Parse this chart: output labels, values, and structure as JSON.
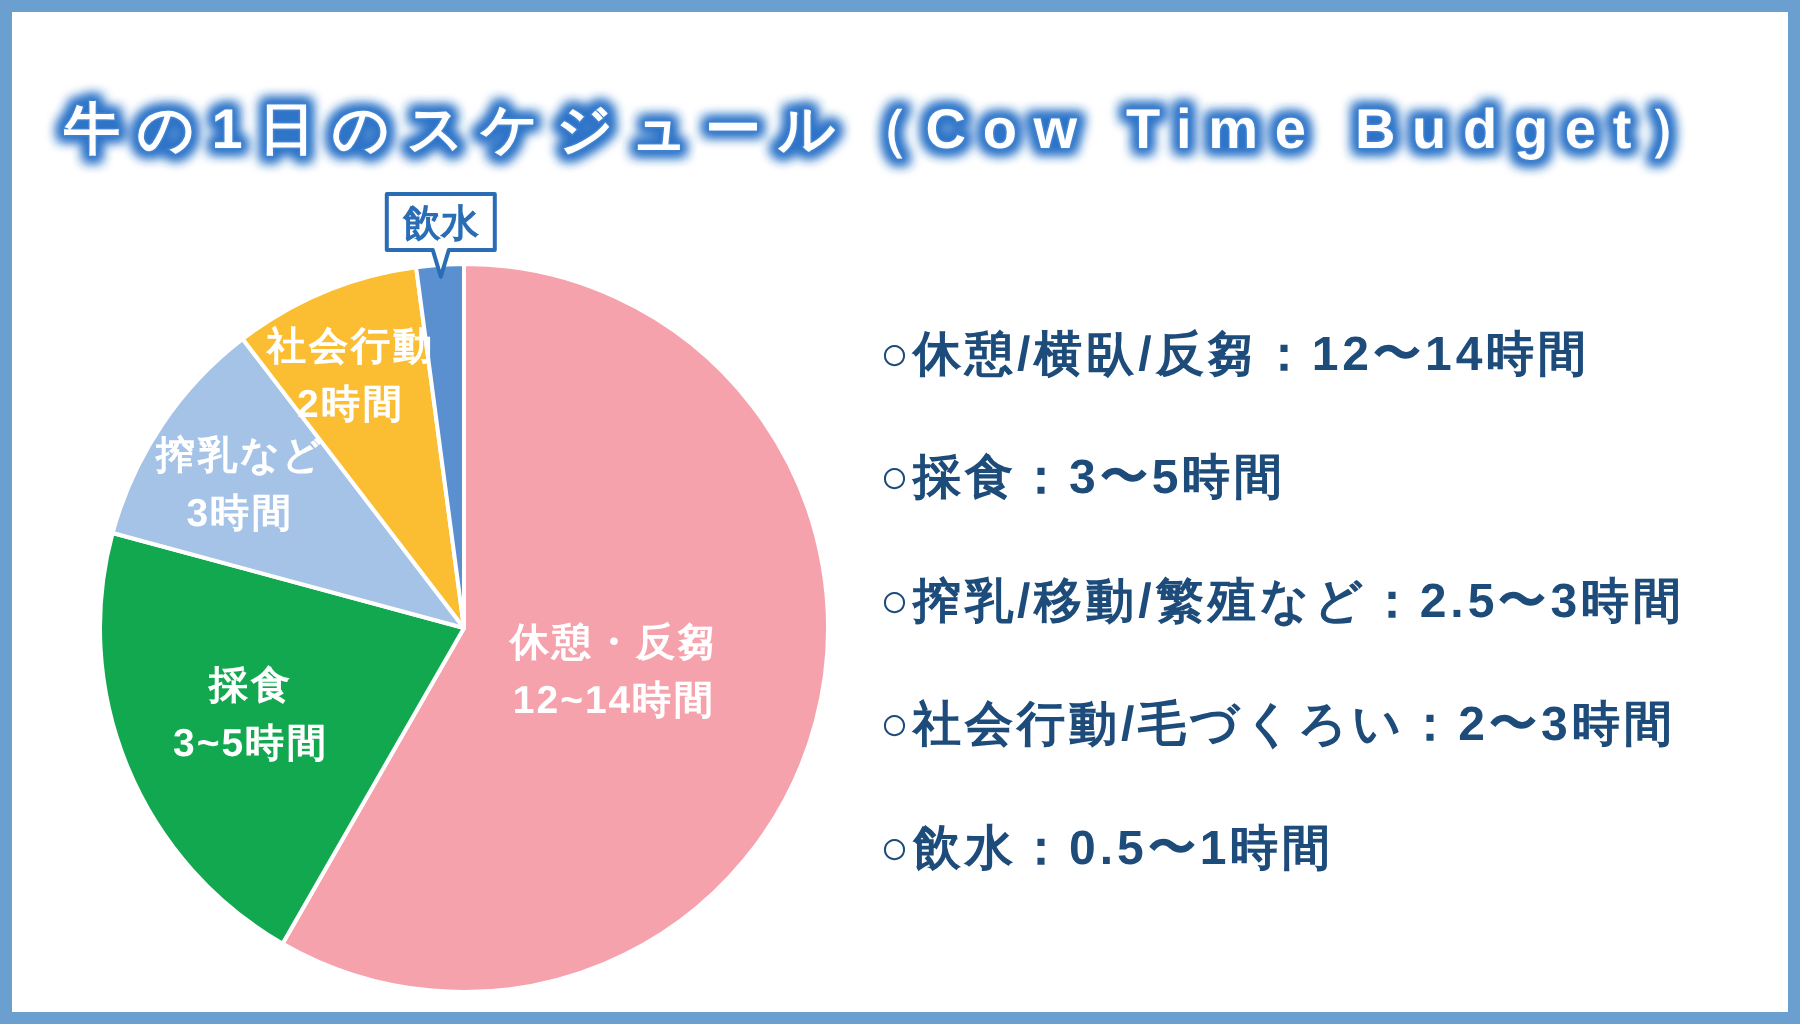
{
  "chart_data": {
    "type": "pie",
    "title": "牛の1日のスケジュール（Cow Time Budget）",
    "categories": [
      "休憩・反芻\n12~14時間",
      "採食\n3~5時間",
      "搾乳など\n3時間",
      "社会行動\n2時間",
      "飲水"
    ],
    "values": [
      58.3,
      20.9,
      10.4,
      8.3,
      2.1
    ],
    "colors": [
      "#f5a2ac",
      "#12a84f",
      "#a5c3e7",
      "#fbbd31",
      "#5b90d0"
    ],
    "annotations": [
      "○休憩/横臥/反芻：12〜14時間",
      "○採食：3〜5時間",
      "○搾乳/移動/繁殖など：2.5〜3時間",
      "○社会行動/毛づくろい：2〜3時間",
      "○飲水：0.5〜1時間"
    ]
  }
}
